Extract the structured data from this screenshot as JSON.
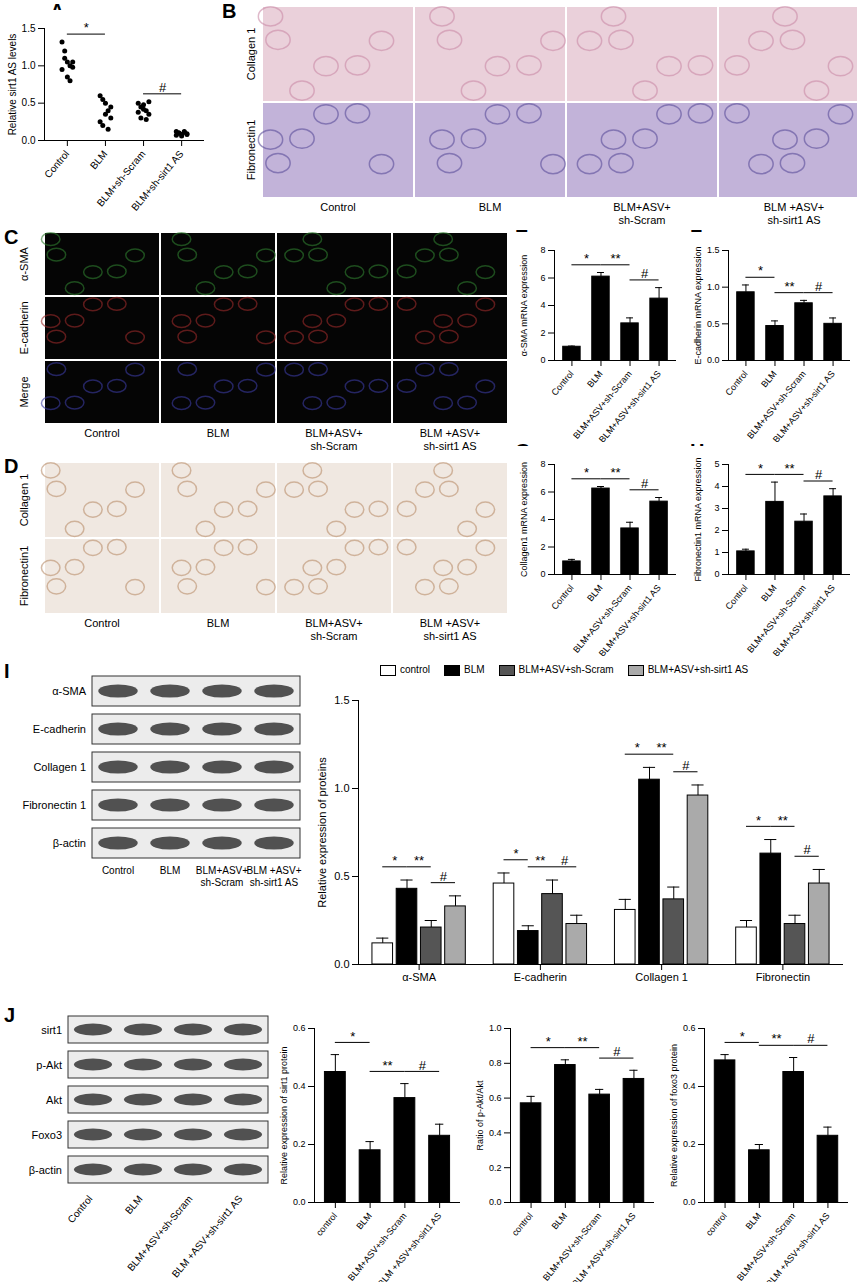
{
  "chart_data": [
    {
      "panel": "A",
      "type": "scatter",
      "categories": [
        "Control",
        "BLM",
        "BLM+sh-Scram",
        "BLM+sh-sirt1 AS"
      ],
      "values": [
        [
          1.32,
          1.1,
          1.05,
          1.0,
          0.98,
          0.95,
          1.2,
          0.85,
          0.8,
          1.05
        ],
        [
          0.6,
          0.55,
          0.5,
          0.4,
          0.3,
          0.25,
          0.2,
          0.35,
          0.15,
          0.45
        ],
        [
          0.5,
          0.45,
          0.42,
          0.4,
          0.35,
          0.38,
          0.3,
          0.48,
          0.28,
          0.52
        ],
        [
          0.12,
          0.1,
          0.08,
          0.11,
          0.09,
          0.07,
          0.1,
          0.06,
          0.12,
          0.08
        ]
      ],
      "y_label": "Relative sirt1 AS levels",
      "ylim": [
        0,
        1.5
      ],
      "yticks": [
        {
          "value": 0,
          "label": "0.0"
        },
        {
          "value": 0.5,
          "label": "0.5"
        },
        {
          "value": 1,
          "label": "1.0"
        },
        {
          "value": 1.5,
          "label": "1.5"
        }
      ],
      "color": "#000000",
      "marker": "circle",
      "annotations": [
        {
          "from": 0,
          "to": 1,
          "label": "*"
        },
        {
          "from": 2,
          "to": 3,
          "label": "#"
        }
      ]
    },
    {
      "panel": "E",
      "type": "bar",
      "categories": [
        "Control",
        "BLM",
        "BLM+ASV+sh-Scram",
        "BLM+ASV+sh-sirt1 AS"
      ],
      "values": [
        1.0,
        6.1,
        2.7,
        4.5
      ],
      "errors": [
        0.05,
        0.3,
        0.4,
        0.8
      ],
      "y_label": "α-SMA mRNA expression",
      "ylim": [
        0,
        8
      ],
      "yticks": [
        0,
        2,
        4,
        6,
        8
      ],
      "color": "#000000",
      "annotations": [
        {
          "from": 0,
          "to": 1,
          "label": "*"
        },
        {
          "from": 1,
          "to": 2,
          "label": "**"
        },
        {
          "from": 2,
          "to": 3,
          "label": "#"
        }
      ]
    },
    {
      "panel": "F",
      "type": "bar",
      "categories": [
        "Control",
        "BLM",
        "BLM+ASV+sh-Scram",
        "BLM+ASV+sh-sirt1 AS"
      ],
      "values": [
        0.93,
        0.47,
        0.78,
        0.5
      ],
      "errors": [
        0.1,
        0.07,
        0.04,
        0.08
      ],
      "y_label": "E-cadherin mRNA expression",
      "ylim": [
        0,
        1.5
      ],
      "yticks": [
        {
          "value": 0,
          "label": "0.0"
        },
        {
          "value": 0.5,
          "label": "0.5"
        },
        {
          "value": 1,
          "label": "1.0"
        },
        {
          "value": 1.5,
          "label": "1.5"
        }
      ],
      "color": "#000000",
      "annotations": [
        {
          "from": 0,
          "to": 1,
          "label": "*"
        },
        {
          "from": 1,
          "to": 2,
          "label": "**"
        },
        {
          "from": 2,
          "to": 3,
          "label": "#"
        }
      ]
    },
    {
      "panel": "G",
      "type": "bar",
      "categories": [
        "Control",
        "BLM",
        "BLM+ASV+sh-Scram",
        "BLM+ASV+sh-sirt1 AS"
      ],
      "values": [
        0.95,
        6.25,
        3.35,
        5.3
      ],
      "errors": [
        0.15,
        0.15,
        0.45,
        0.3
      ],
      "y_label": "Collagen1 mRNA expression",
      "ylim": [
        0,
        8
      ],
      "yticks": [
        0,
        2,
        4,
        6,
        8
      ],
      "color": "#000000",
      "annotations": [
        {
          "from": 0,
          "to": 1,
          "label": "*"
        },
        {
          "from": 1,
          "to": 2,
          "label": "**"
        },
        {
          "from": 2,
          "to": 3,
          "label": "#"
        }
      ]
    },
    {
      "panel": "H",
      "type": "bar",
      "categories": [
        "Control",
        "BLM",
        "BLM+ASV+sh-Scram",
        "BLM+ASV+sh-sirt1 AS"
      ],
      "values": [
        1.05,
        3.3,
        2.4,
        3.55
      ],
      "errors": [
        0.1,
        0.9,
        0.35,
        0.35
      ],
      "y_label": "Fibronectin1 mRNA expression",
      "ylim": [
        0,
        5
      ],
      "yticks": [
        0,
        1,
        2,
        3,
        4,
        5
      ],
      "color": "#000000",
      "annotations": [
        {
          "from": 0,
          "to": 1,
          "label": "*"
        },
        {
          "from": 1,
          "to": 2,
          "label": "**"
        },
        {
          "from": 2,
          "to": 3,
          "label": "#"
        }
      ]
    },
    {
      "type": "bar",
      "categories": [
        "α-SMA",
        "E-cadherin",
        "Collagen 1",
        "Fibronectin"
      ],
      "series": [
        {
          "name": "control",
          "color": "#ffffff",
          "values": [
            0.12,
            0.46,
            0.31,
            0.21
          ],
          "errors": [
            0.03,
            0.06,
            0.06,
            0.04
          ]
        },
        {
          "name": "BLM",
          "color": "#000000",
          "values": [
            0.43,
            0.19,
            1.05,
            0.63
          ],
          "errors": [
            0.05,
            0.03,
            0.07,
            0.08
          ]
        },
        {
          "name": "BLM+ASV+sh-Scram",
          "color": "#555555",
          "values": [
            0.21,
            0.4,
            0.37,
            0.23
          ],
          "errors": [
            0.04,
            0.08,
            0.07,
            0.05
          ]
        },
        {
          "name": "BLM+ASV+sh-sirt1 AS",
          "color": "#aaaaaa",
          "values": [
            0.33,
            0.23,
            0.96,
            0.46
          ],
          "errors": [
            0.06,
            0.05,
            0.06,
            0.08
          ]
        }
      ],
      "y_label": "Relative expression of proteins",
      "ylim": [
        0,
        1.5
      ],
      "yticks": [
        {
          "value": 0,
          "label": "0.0"
        },
        {
          "value": 0.5,
          "label": "0.5"
        },
        {
          "value": 1,
          "label": "1.0"
        },
        {
          "value": 1.5,
          "label": "1.5"
        }
      ],
      "legend": "top",
      "annotations": [
        {
          "from": 0,
          "to": 1,
          "label": "*"
        },
        {
          "from": 1,
          "to": 2,
          "label": "**"
        },
        {
          "from": 2,
          "to": 3,
          "label": "#"
        }
      ]
    },
    {
      "type": "bar",
      "categories": [
        "control",
        "BLM",
        "BLM+ASV+sh-Scram",
        "BLM +ASV+sh-sirt1 AS"
      ],
      "values": [
        0.45,
        0.18,
        0.36,
        0.23
      ],
      "errors": [
        0.06,
        0.03,
        0.05,
        0.04
      ],
      "y_label": "Relative expression of sirt1 protein",
      "ylim": [
        0,
        0.6
      ],
      "yticks": [
        {
          "value": 0,
          "label": "0.0"
        },
        {
          "value": 0.2,
          "label": "0.2"
        },
        {
          "value": 0.4,
          "label": "0.4"
        },
        {
          "value": 0.6,
          "label": "0.6"
        }
      ],
      "color": "#000000",
      "annotations": [
        {
          "from": 0,
          "to": 1,
          "label": "*"
        },
        {
          "from": 1,
          "to": 2,
          "label": "**"
        },
        {
          "from": 2,
          "to": 3,
          "label": "#"
        }
      ]
    },
    {
      "type": "bar",
      "categories": [
        "control",
        "BLM",
        "BLM+ASV+sh-Scram",
        "BLM +ASV+sh-sirt1 AS"
      ],
      "values": [
        0.57,
        0.79,
        0.62,
        0.71
      ],
      "errors": [
        0.04,
        0.03,
        0.03,
        0.05
      ],
      "y_label": "Ratio of p-Akt/Akt",
      "ylim": [
        0,
        1
      ],
      "yticks": [
        {
          "value": 0,
          "label": "0.0"
        },
        {
          "value": 0.2,
          "label": "0.2"
        },
        {
          "value": 0.4,
          "label": "0.4"
        },
        {
          "value": 0.6,
          "label": "0.6"
        },
        {
          "value": 0.8,
          "label": "0.8"
        },
        {
          "value": 1,
          "label": "1.0"
        }
      ],
      "color": "#000000",
      "annotations": [
        {
          "from": 0,
          "to": 1,
          "label": "*"
        },
        {
          "from": 1,
          "to": 2,
          "label": "**"
        },
        {
          "from": 2,
          "to": 3,
          "label": "#"
        }
      ]
    },
    {
      "type": "bar",
      "categories": [
        "control",
        "BLM",
        "BLM+ASV+sh-Scram",
        "BLM +ASV+sh-sirt1 AS"
      ],
      "values": [
        0.49,
        0.18,
        0.45,
        0.23
      ],
      "errors": [
        0.02,
        0.02,
        0.05,
        0.03
      ],
      "y_label": "Relative expression of foxo3 protein",
      "ylim": [
        0,
        0.6
      ],
      "yticks": [
        {
          "value": 0,
          "label": "0.0"
        },
        {
          "value": 0.2,
          "label": "0.2"
        },
        {
          "value": 0.4,
          "label": "0.4"
        },
        {
          "value": 0.6,
          "label": "0.6"
        }
      ],
      "color": "#000000",
      "annotations": [
        {
          "from": 0,
          "to": 1,
          "label": "*"
        },
        {
          "from": 1,
          "to": 2,
          "label": "**"
        },
        {
          "from": 2,
          "to": 3,
          "label": "#"
        }
      ]
    }
  ],
  "image_panels": [
    {
      "panel": "B",
      "row_labels": [
        "Collagen 1",
        "Fibronectin1"
      ],
      "column_labels": [
        "Control",
        "BLM",
        "BLM+ASV+\nsh-Scram",
        "BLM +ASV+\nsh-sirt1 AS"
      ]
    },
    {
      "panel": "C",
      "row_labels": [
        "α-SMA",
        "E-cadherin",
        "Merge"
      ],
      "column_labels": [
        "Control",
        "BLM",
        "BLM+ASV+\nsh-Scram",
        "BLM +ASV+\nsh-sirt1 AS"
      ]
    },
    {
      "panel": "D",
      "row_labels": [
        "Collagen 1",
        "Fibronectin1"
      ],
      "column_labels": [
        "Control",
        "BLM",
        "BLM+ASV+\nsh-Scram",
        "BLM +ASV+\nsh-sirt1 AS"
      ]
    }
  ],
  "blots": [
    {
      "panel": "I",
      "row_labels": [
        "α-SMA",
        "E-cadherin",
        "Collagen 1",
        "Fibronectin 1",
        "β-actin"
      ],
      "lane_labels": [
        "Control",
        "BLM",
        "BLM+ASV+\nsh-Scram",
        "BLM +ASV+\nsh-sirt1 AS"
      ]
    },
    {
      "panel": "J",
      "row_labels": [
        "sirt1",
        "p-Akt",
        "Akt",
        "Foxo3",
        "β-actin"
      ],
      "lane_labels": [
        "Control",
        "BLM",
        "BLM+ASV+sh-Scram",
        "BLM +ASV+sh-sirt1 AS"
      ]
    }
  ]
}
